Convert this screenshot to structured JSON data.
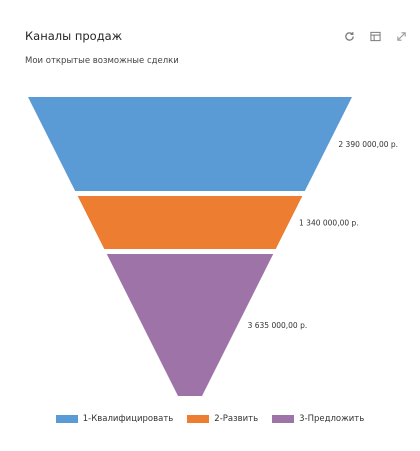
{
  "header": {
    "title": "Каналы продаж",
    "subtitle": "Мои открытые возможные сделки"
  },
  "toolbar": {
    "refresh_icon": "refresh-icon",
    "grid_icon": "grid-view-icon",
    "expand_icon": "expand-icon"
  },
  "chart_data": {
    "type": "funnel",
    "series": [
      {
        "name": "1-Квалифицировать",
        "value": 2390000,
        "label": "2 390 000,00 р.",
        "color": "#5b9bd5"
      },
      {
        "name": "2-Развить",
        "value": 1340000,
        "label": "1 340 000,00 р.",
        "color": "#ed7d31"
      },
      {
        "name": "3-Предложить",
        "value": 3635000,
        "label": "3 635 000,00 р.",
        "color": "#9e74a8"
      }
    ],
    "legend_position": "bottom"
  }
}
